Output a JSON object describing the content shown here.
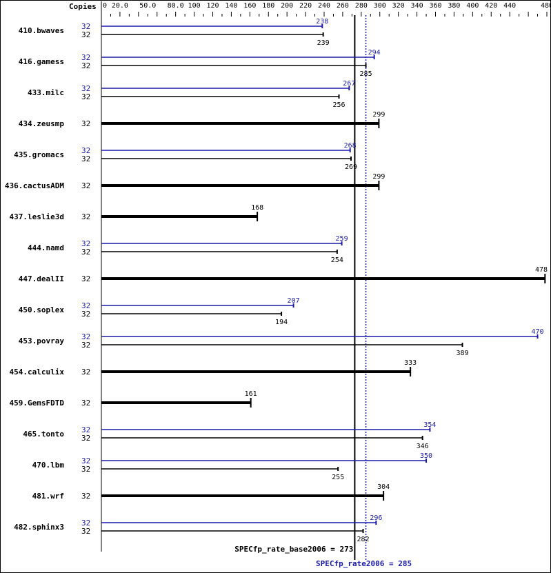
{
  "chart_data": {
    "type": "bar",
    "orientation": "horizontal",
    "copies_header": "Copies",
    "xlim": [
      0,
      480
    ],
    "ticks": [
      "0",
      "20.0",
      "50.0",
      "80.0",
      "100",
      "120",
      "140",
      "160",
      "180",
      "200",
      "220",
      "240",
      "260",
      "280",
      "300",
      "320",
      "340",
      "360",
      "380",
      "400",
      "420",
      "440",
      "480"
    ],
    "tick_values": [
      0,
      20,
      50,
      80,
      100,
      120,
      140,
      160,
      180,
      200,
      220,
      240,
      260,
      280,
      300,
      320,
      340,
      360,
      380,
      400,
      420,
      440,
      480
    ],
    "colors": {
      "base": "#000000",
      "peak": "#1a1aaa"
    },
    "benchmarks": [
      {
        "name": "410.bwaves",
        "base_copies": "32",
        "peak_copies": "32",
        "base": 239,
        "peak": 238
      },
      {
        "name": "416.gamess",
        "base_copies": "32",
        "peak_copies": "32",
        "base": 285,
        "peak": 294
      },
      {
        "name": "433.milc",
        "base_copies": "32",
        "peak_copies": "32",
        "base": 256,
        "peak": 267
      },
      {
        "name": "434.zeusmp",
        "base_copies": "32",
        "base": 299
      },
      {
        "name": "435.gromacs",
        "base_copies": "32",
        "peak_copies": "32",
        "base": 269,
        "peak": 268
      },
      {
        "name": "436.cactusADM",
        "base_copies": "32",
        "base": 299
      },
      {
        "name": "437.leslie3d",
        "base_copies": "32",
        "base": 168
      },
      {
        "name": "444.namd",
        "base_copies": "32",
        "peak_copies": "32",
        "base": 254,
        "peak": 259
      },
      {
        "name": "447.dealII",
        "base_copies": "32",
        "base": 478
      },
      {
        "name": "450.soplex",
        "base_copies": "32",
        "peak_copies": "32",
        "base": 194,
        "peak": 207
      },
      {
        "name": "453.povray",
        "base_copies": "32",
        "peak_copies": "32",
        "base": 389,
        "peak": 470
      },
      {
        "name": "454.calculix",
        "base_copies": "32",
        "base": 333
      },
      {
        "name": "459.GemsFDTD",
        "base_copies": "32",
        "base": 161
      },
      {
        "name": "465.tonto",
        "base_copies": "32",
        "peak_copies": "32",
        "base": 346,
        "peak": 354
      },
      {
        "name": "470.lbm",
        "base_copies": "32",
        "peak_copies": "32",
        "base": 255,
        "peak": 350
      },
      {
        "name": "481.wrf",
        "base_copies": "32",
        "base": 304
      },
      {
        "name": "482.sphinx3",
        "base_copies": "32",
        "peak_copies": "32",
        "base": 282,
        "peak": 296
      }
    ],
    "base_metric": {
      "label": "SPECfp_rate_base2006 = 273",
      "value": 273
    },
    "peak_metric": {
      "label": "SPECfp_rate2006 = 285",
      "value": 285
    }
  }
}
